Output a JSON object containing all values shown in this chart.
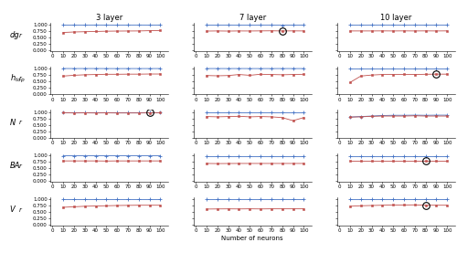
{
  "neurons": [
    10,
    20,
    30,
    40,
    50,
    60,
    70,
    80,
    90,
    100
  ],
  "row_labels": [
    "dg",
    "h_top",
    "N",
    "BA",
    "V"
  ],
  "row_display": [
    "dg",
    "hₙₒₚ",
    "N",
    "BA",
    "V"
  ],
  "col_labels": [
    "3 layer",
    "7 layer",
    "10 layer"
  ],
  "x_label": "Number of neurons",
  "blue_color": "#4472C4",
  "red_color": "#C0504D",
  "data": {
    "dg": {
      "3layer": {
        "blue": [
          0.99,
          0.992,
          0.991,
          0.993,
          0.992,
          0.991,
          0.992,
          0.993,
          0.991,
          0.992
        ],
        "red": [
          0.7,
          0.72,
          0.73,
          0.74,
          0.75,
          0.755,
          0.758,
          0.76,
          0.77,
          0.775
        ],
        "circle": null
      },
      "7layer": {
        "blue": [
          0.99,
          0.991,
          0.992,
          0.99,
          0.991,
          0.992,
          0.992,
          0.985,
          0.99,
          0.992
        ],
        "red": [
          0.755,
          0.76,
          0.755,
          0.76,
          0.758,
          0.762,
          0.765,
          0.76,
          0.762,
          0.76
        ],
        "circle": [
          80,
          0.762
        ]
      },
      "10layer": {
        "blue": [
          0.99,
          0.991,
          0.992,
          0.993,
          0.992,
          0.991,
          0.992,
          0.991,
          0.992,
          0.992
        ],
        "red": [
          0.76,
          0.76,
          0.76,
          0.762,
          0.76,
          0.762,
          0.76,
          0.762,
          0.76,
          0.762
        ],
        "circle": null
      }
    },
    "htop": {
      "3layer": {
        "blue": [
          0.995,
          0.993,
          0.994,
          0.994,
          0.993,
          0.992,
          0.993,
          0.993,
          0.993,
          0.994
        ],
        "red": [
          0.7,
          0.73,
          0.75,
          0.76,
          0.77,
          0.77,
          0.775,
          0.775,
          0.78,
          0.78
        ],
        "circle": null
      },
      "7layer": {
        "blue": [
          0.993,
          0.994,
          0.993,
          0.994,
          0.993,
          0.993,
          0.993,
          0.994,
          0.993,
          0.993
        ],
        "red": [
          0.72,
          0.71,
          0.72,
          0.76,
          0.73,
          0.77,
          0.76,
          0.75,
          0.76,
          0.77
        ],
        "circle": null
      },
      "10layer": {
        "blue": [
          0.993,
          0.993,
          0.993,
          0.993,
          0.993,
          0.993,
          0.993,
          0.993,
          0.993,
          0.993
        ],
        "red": [
          0.45,
          0.7,
          0.74,
          0.76,
          0.76,
          0.765,
          0.76,
          0.77,
          0.775,
          0.775
        ],
        "circle": [
          90,
          0.78
        ]
      }
    },
    "N": {
      "3layer": {
        "blue": [
          0.99,
          0.99,
          0.99,
          0.99,
          0.99,
          0.99,
          0.99,
          0.99,
          0.99,
          0.99
        ],
        "red": [
          0.97,
          0.96,
          0.965,
          0.96,
          0.965,
          0.96,
          0.96,
          0.96,
          0.965,
          0.97
        ],
        "circle": [
          90,
          0.968
        ]
      },
      "7layer": {
        "blue": [
          0.99,
          0.99,
          0.99,
          0.99,
          0.99,
          0.99,
          0.99,
          0.99,
          0.99,
          0.99
        ],
        "red": [
          0.82,
          0.81,
          0.82,
          0.83,
          0.81,
          0.82,
          0.81,
          0.78,
          0.66,
          0.78
        ],
        "circle": null
      },
      "10layer": {
        "blue": [
          0.8,
          0.82,
          0.84,
          0.86,
          0.87,
          0.87,
          0.875,
          0.87,
          0.875,
          0.875
        ],
        "red": [
          0.8,
          0.81,
          0.83,
          0.84,
          0.84,
          0.84,
          0.85,
          0.84,
          0.84,
          0.84
        ],
        "circle": null
      }
    },
    "BA": {
      "3layer": {
        "blue": [
          0.99,
          0.991,
          0.991,
          0.991,
          0.991,
          0.991,
          0.99,
          0.991,
          0.991,
          0.991
        ],
        "red": [
          0.79,
          0.79,
          0.79,
          0.79,
          0.785,
          0.79,
          0.79,
          0.79,
          0.79,
          0.79
        ],
        "circle": null
      },
      "7layer": {
        "blue": [
          0.991,
          0.991,
          0.991,
          0.991,
          0.991,
          0.991,
          0.991,
          0.991,
          0.991,
          0.991
        ],
        "red": [
          0.69,
          0.685,
          0.688,
          0.69,
          0.69,
          0.69,
          0.69,
          0.69,
          0.69,
          0.69
        ],
        "circle": null
      },
      "10layer": {
        "blue": [
          0.99,
          0.99,
          0.99,
          0.99,
          0.99,
          0.99,
          0.99,
          0.99,
          0.99,
          0.99
        ],
        "red": [
          0.79,
          0.79,
          0.79,
          0.79,
          0.79,
          0.79,
          0.79,
          0.79,
          0.79,
          0.79
        ],
        "circle": [
          80,
          0.793
        ]
      }
    },
    "V": {
      "3layer": {
        "blue": [
          0.99,
          0.99,
          0.99,
          0.99,
          0.99,
          0.99,
          0.99,
          0.99,
          0.99,
          0.99
        ],
        "red": [
          0.68,
          0.7,
          0.72,
          0.73,
          0.74,
          0.75,
          0.755,
          0.76,
          0.76,
          0.76
        ],
        "circle": null
      },
      "7layer": {
        "blue": [
          0.99,
          0.99,
          0.99,
          0.99,
          0.99,
          0.99,
          0.99,
          0.99,
          0.99,
          0.99
        ],
        "red": [
          0.61,
          0.615,
          0.618,
          0.615,
          0.62,
          0.615,
          0.62,
          0.62,
          0.62,
          0.62
        ],
        "circle": null
      },
      "10layer": {
        "blue": [
          0.99,
          0.99,
          0.99,
          0.99,
          0.99,
          0.99,
          0.99,
          0.99,
          0.99,
          0.99
        ],
        "red": [
          0.72,
          0.74,
          0.75,
          0.76,
          0.77,
          0.77,
          0.775,
          0.76,
          0.76,
          0.76
        ],
        "circle": [
          80,
          0.763
        ]
      }
    }
  },
  "ylim": [
    -0.02,
    1.08
  ],
  "yticks": [
    0.0,
    0.25,
    0.5,
    0.75,
    1.0
  ],
  "title_fontsize": 6,
  "tick_fontsize": 4,
  "label_fontsize": 5,
  "row_label_fontsize": 6
}
